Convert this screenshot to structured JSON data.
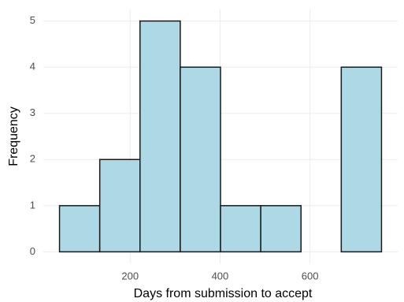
{
  "chart_data": {
    "type": "histogram",
    "xlabel": "Days from submission to accept",
    "ylabel": "Frequency",
    "bins": [
      43,
      132.5,
      222,
      311.5,
      401,
      490.5,
      580,
      669.5,
      759
    ],
    "values": [
      1,
      2,
      5,
      4,
      1,
      1,
      0,
      4
    ],
    "color": "#add8e6",
    "edgecolor": "#1a1a1a",
    "xlim": [
      7,
      795
    ],
    "xticks": [
      200,
      400,
      600
    ],
    "ylim": [
      -0.25,
      5.25
    ],
    "yticks": [
      0,
      1,
      2,
      3,
      4,
      5
    ],
    "grid": true
  }
}
